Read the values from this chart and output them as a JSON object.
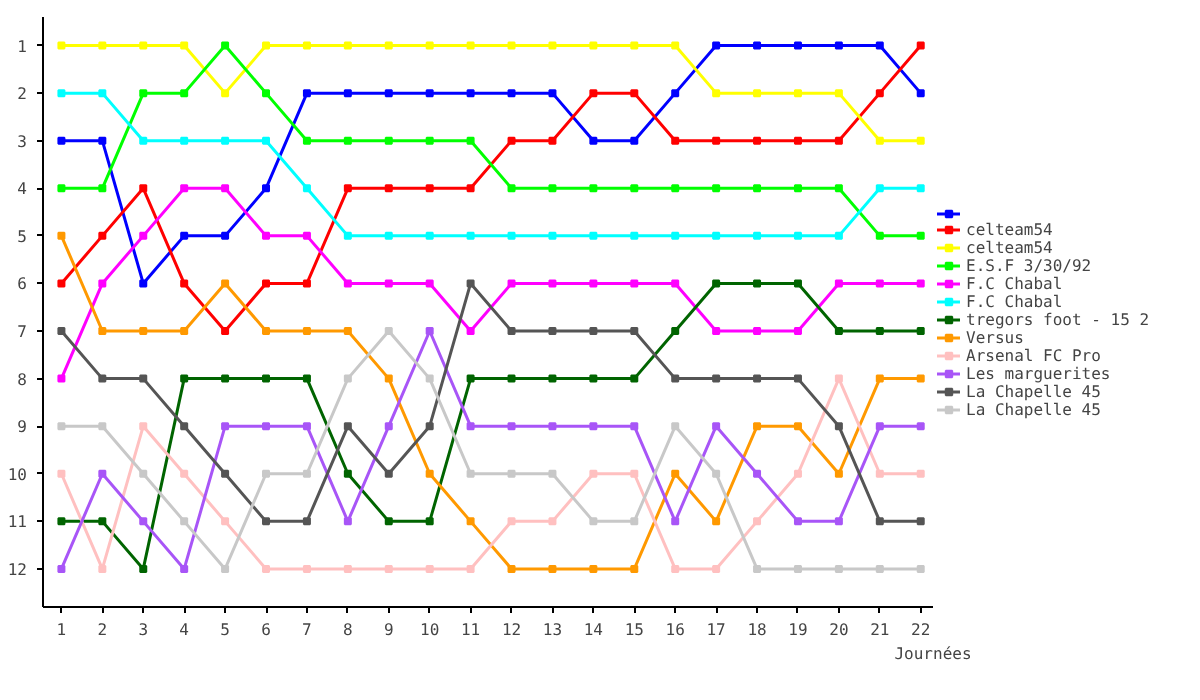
{
  "chart_data": {
    "type": "line",
    "xlabel": "Journées",
    "x": [
      1,
      2,
      3,
      4,
      5,
      6,
      7,
      8,
      9,
      10,
      11,
      12,
      13,
      14,
      15,
      16,
      17,
      18,
      19,
      20,
      21,
      22
    ],
    "xlim": [
      0.55,
      22.3
    ],
    "xticks": [
      1,
      2,
      3,
      4,
      5,
      6,
      7,
      8,
      9,
      10,
      11,
      12,
      13,
      14,
      15,
      16,
      17,
      18,
      19,
      20,
      21,
      22
    ],
    "ylim": [
      12.8,
      0.4
    ],
    "yticks": [
      1,
      2,
      3,
      4,
      5,
      6,
      7,
      8,
      9,
      10,
      11,
      12
    ],
    "marker": "square",
    "grid": false,
    "legend": "right",
    "series": [
      {
        "color": "#0000ff",
        "values": [
          3,
          3,
          6,
          5,
          5,
          4,
          2,
          2,
          2,
          2,
          2,
          2,
          2,
          3,
          3,
          2,
          1,
          1,
          1,
          1,
          1,
          2
        ]
      },
      {
        "name": "celteam54",
        "color": "#ff0000",
        "values": [
          6,
          5,
          4,
          6,
          7,
          6,
          6,
          4,
          4,
          4,
          4,
          3,
          3,
          2,
          2,
          3,
          3,
          3,
          3,
          3,
          2,
          1
        ]
      },
      {
        "name": "celteam54",
        "color": "#ffff00",
        "values": [
          1,
          1,
          1,
          1,
          2,
          1,
          1,
          1,
          1,
          1,
          1,
          1,
          1,
          1,
          1,
          1,
          2,
          2,
          2,
          2,
          3,
          3
        ]
      },
      {
        "name": "E.S.F 3/30/92",
        "color": "#00ff00",
        "values": [
          4,
          4,
          2,
          2,
          1,
          2,
          3,
          3,
          3,
          3,
          3,
          4,
          4,
          4,
          4,
          4,
          4,
          4,
          4,
          4,
          5,
          5
        ]
      },
      {
        "name": "F.C Chabal",
        "color": "#ff00ff",
        "values": [
          8,
          6,
          5,
          4,
          4,
          5,
          5,
          6,
          6,
          6,
          7,
          6,
          6,
          6,
          6,
          6,
          7,
          7,
          7,
          6,
          6,
          6
        ]
      },
      {
        "name": "F.C Chabal",
        "color": "#00ffff",
        "values": [
          2,
          2,
          3,
          3,
          3,
          3,
          4,
          5,
          5,
          5,
          5,
          5,
          5,
          5,
          5,
          5,
          5,
          5,
          5,
          5,
          4,
          4
        ]
      },
      {
        "name": "tregors foot - 15 2",
        "color": "#006400",
        "values": [
          11,
          11,
          12,
          8,
          8,
          8,
          8,
          10,
          11,
          11,
          8,
          8,
          8,
          8,
          8,
          7,
          6,
          6,
          6,
          7,
          7,
          7
        ]
      },
      {
        "name": "Versus",
        "color": "#ff9900",
        "values": [
          5,
          7,
          7,
          7,
          6,
          7,
          7,
          7,
          8,
          10,
          11,
          12,
          12,
          12,
          12,
          10,
          11,
          9,
          9,
          10,
          8,
          8
        ]
      },
      {
        "name": "Arsenal FC Pro",
        "color": "#ffc0c0",
        "values": [
          10,
          12,
          9,
          10,
          11,
          12,
          12,
          12,
          12,
          12,
          12,
          11,
          11,
          10,
          10,
          12,
          12,
          11,
          10,
          8,
          10,
          10
        ]
      },
      {
        "name": "Les marguerites",
        "color": "#a855f7",
        "values": [
          12,
          10,
          11,
          12,
          9,
          9,
          9,
          11,
          9,
          7,
          9,
          9,
          9,
          9,
          9,
          11,
          9,
          10,
          11,
          11,
          9,
          9
        ]
      },
      {
        "name": "La Chapelle 45",
        "color": "#555555",
        "values": [
          7,
          8,
          8,
          9,
          10,
          11,
          11,
          9,
          10,
          9,
          6,
          7,
          7,
          7,
          7,
          8,
          8,
          8,
          8,
          9,
          11,
          11
        ]
      },
      {
        "name": "La Chapelle 45",
        "color": "#c8c8c8",
        "values": [
          9,
          9,
          10,
          11,
          12,
          10,
          10,
          8,
          7,
          8,
          10,
          10,
          10,
          11,
          11,
          9,
          10,
          12,
          12,
          12,
          12,
          12
        ]
      }
    ]
  }
}
